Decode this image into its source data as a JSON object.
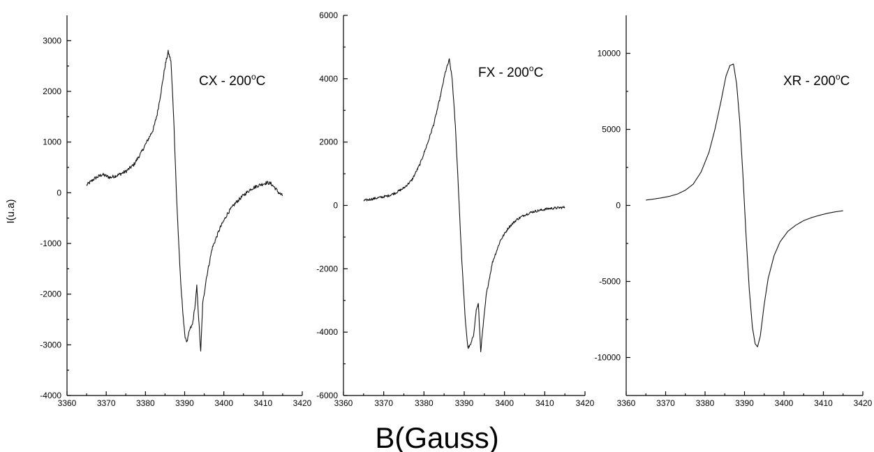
{
  "ylabel": "I(u.a)",
  "xlabel": "B(Gauss)",
  "chart_data": [
    {
      "type": "line",
      "label_main": "CX - 200",
      "label_sup": "o",
      "label_tail": "C",
      "xlim": [
        3360,
        3420
      ],
      "ylim": [
        -4000,
        3500
      ],
      "xticks": [
        3360,
        3370,
        3380,
        3390,
        3400,
        3410,
        3420
      ],
      "yticks": [
        -4000,
        -3000,
        -2000,
        -1000,
        0,
        1000,
        2000,
        3000
      ],
      "noise": 35,
      "series": [
        {
          "x": [
            3365,
            3367,
            3369,
            3371,
            3373,
            3375,
            3377,
            3379,
            3381,
            3382,
            3383,
            3384,
            3385,
            3385.8,
            3386.5,
            3387.2,
            3388,
            3389,
            3390,
            3390.6,
            3391.3,
            3392,
            3392.7,
            3393.1,
            3393.6,
            3394.1,
            3394.6,
            3395.5,
            3397,
            3399,
            3401,
            3403,
            3405,
            3407,
            3409,
            3411,
            3412,
            3413,
            3414,
            3415
          ],
          "y": [
            150,
            280,
            360,
            300,
            350,
            420,
            550,
            800,
            1100,
            1250,
            1550,
            2000,
            2500,
            2780,
            2600,
            1500,
            -200,
            -1800,
            -2800,
            -2950,
            -2700,
            -2600,
            -2200,
            -1850,
            -2500,
            -3150,
            -2200,
            -1700,
            -1100,
            -700,
            -400,
            -200,
            -50,
            80,
            150,
            200,
            180,
            100,
            0,
            -60
          ]
        }
      ]
    },
    {
      "type": "line",
      "label_main": "FX - 200",
      "label_sup": "o",
      "label_tail": "C",
      "xlim": [
        3360,
        3420
      ],
      "ylim": [
        -6000,
        6000
      ],
      "xticks": [
        3360,
        3370,
        3380,
        3390,
        3400,
        3410,
        3420
      ],
      "yticks": [
        -6000,
        -4000,
        -2000,
        0,
        2000,
        4000,
        6000
      ],
      "noise": 40,
      "series": [
        {
          "x": [
            3365,
            3367,
            3369,
            3371,
            3373,
            3375,
            3377,
            3379,
            3381,
            3382.5,
            3384,
            3385.3,
            3386.3,
            3387,
            3387.8,
            3388.5,
            3389.3,
            3390.2,
            3390.9,
            3391.6,
            3392.3,
            3393,
            3393.5,
            3394.1,
            3394.7,
            3395.5,
            3397,
            3399,
            3401,
            3403,
            3405,
            3407,
            3409,
            3411,
            3413,
            3415
          ],
          "y": [
            150,
            200,
            250,
            300,
            400,
            550,
            800,
            1300,
            2000,
            2600,
            3400,
            4200,
            4600,
            4000,
            2500,
            700,
            -1500,
            -3500,
            -4500,
            -4400,
            -4100,
            -3300,
            -3100,
            -4600,
            -3800,
            -2800,
            -1800,
            -1100,
            -700,
            -450,
            -300,
            -200,
            -150,
            -100,
            -80,
            -60
          ]
        }
      ]
    },
    {
      "type": "line",
      "label_main": "XR - 200",
      "label_sup": "o",
      "label_tail": "C",
      "xlim": [
        3360,
        3420
      ],
      "ylim": [
        -12500,
        12500
      ],
      "xticks": [
        3360,
        3370,
        3380,
        3390,
        3400,
        3410,
        3420
      ],
      "yticks": [
        -10000,
        -5000,
        0,
        5000,
        10000
      ],
      "noise": 0,
      "series": [
        {
          "x": [
            3365,
            3367,
            3369,
            3371,
            3373,
            3375,
            3377,
            3379,
            3381,
            3382.5,
            3384,
            3385.3,
            3386.3,
            3387.2,
            3388,
            3388.8,
            3389.6,
            3390.4,
            3391.2,
            3392,
            3392.7,
            3393.3,
            3394,
            3395,
            3396,
            3397.5,
            3399,
            3401,
            3403,
            3405,
            3407,
            3409,
            3411,
            3413,
            3415
          ],
          "y": [
            350,
            420,
            500,
            600,
            750,
            1000,
            1400,
            2200,
            3500,
            5000,
            6800,
            8500,
            9200,
            9300,
            8000,
            5500,
            2000,
            -2000,
            -5500,
            -8000,
            -9100,
            -9300,
            -8600,
            -6500,
            -4800,
            -3300,
            -2400,
            -1700,
            -1300,
            -1000,
            -800,
            -650,
            -520,
            -420,
            -350
          ]
        }
      ]
    }
  ]
}
